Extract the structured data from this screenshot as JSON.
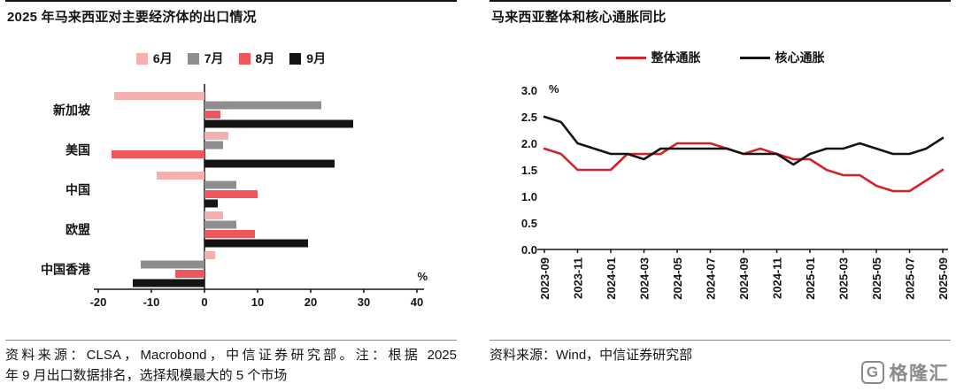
{
  "chart_data": [
    {
      "type": "bar",
      "orientation": "horizontal",
      "title": "2025 年马来西亚对主要经济体的出口情况",
      "unit_label": "%",
      "categories": [
        "新加坡",
        "美国",
        "中国",
        "欧盟",
        "中国香港"
      ],
      "series": [
        {
          "name": "6月",
          "color": "#F5B0AD",
          "values": [
            -17,
            4.5,
            -9,
            3.5,
            2
          ]
        },
        {
          "name": "7月",
          "color": "#8E8E8E",
          "values": [
            22,
            3.5,
            6,
            6,
            -12
          ]
        },
        {
          "name": "8月",
          "color": "#F0575C",
          "values": [
            3,
            -17.5,
            10,
            9.5,
            -5.5
          ]
        },
        {
          "name": "9月",
          "color": "#141414",
          "values": [
            28,
            24.5,
            2.5,
            19.5,
            -13.5
          ]
        }
      ],
      "xlim": [
        -20,
        40
      ],
      "xticks": [
        -20,
        -10,
        0,
        10,
        20,
        30,
        40
      ],
      "legend_position": "top",
      "grid": false
    },
    {
      "type": "line",
      "title": "马来西亚整体和核心通胀同比",
      "unit_label": "%",
      "x": [
        "2023-09",
        "2023-10",
        "2023-11",
        "2023-12",
        "2024-01",
        "2024-02",
        "2024-03",
        "2024-04",
        "2024-05",
        "2024-06",
        "2024-07",
        "2024-08",
        "2024-09",
        "2024-10",
        "2024-11",
        "2024-12",
        "2025-01",
        "2025-02",
        "2025-03",
        "2025-04",
        "2025-05",
        "2025-06",
        "2025-07",
        "2025-08",
        "2025-09"
      ],
      "xtick_labels": [
        "2023-09",
        "2023-11",
        "2024-01",
        "2024-03",
        "2024-05",
        "2024-07",
        "2024-09",
        "2024-11",
        "2025-01",
        "2025-03",
        "2025-05",
        "2025-07",
        "2025-09"
      ],
      "series": [
        {
          "name": "整体通胀",
          "color": "#D2232A",
          "values": [
            1.9,
            1.8,
            1.5,
            1.5,
            1.5,
            1.8,
            1.8,
            1.8,
            2.0,
            2.0,
            2.0,
            1.9,
            1.8,
            1.9,
            1.8,
            1.7,
            1.7,
            1.5,
            1.4,
            1.4,
            1.2,
            1.1,
            1.1,
            1.3,
            1.5
          ]
        },
        {
          "name": "核心通胀",
          "color": "#141414",
          "values": [
            2.5,
            2.4,
            2.0,
            1.9,
            1.8,
            1.8,
            1.7,
            1.9,
            1.9,
            1.9,
            1.9,
            1.9,
            1.8,
            1.8,
            1.8,
            1.6,
            1.8,
            1.9,
            1.9,
            2.0,
            1.9,
            1.8,
            1.8,
            1.9,
            2.1
          ]
        }
      ],
      "ylim": [
        0.0,
        3.0
      ],
      "yticks": [
        0.0,
        0.5,
        1.0,
        1.5,
        2.0,
        2.5,
        3.0
      ],
      "legend_position": "top",
      "grid": false
    }
  ],
  "sources": {
    "left_line1": "资料来源：CLSA，Macrobond，中信证券研究部。注：根据 2025",
    "left_line2": "年 9 月出口数据排名，选择规模最大的 5 个市场",
    "right": "资料来源：Wind，中信证券研究部"
  },
  "logo": {
    "letter": "G",
    "text": "格隆汇"
  }
}
